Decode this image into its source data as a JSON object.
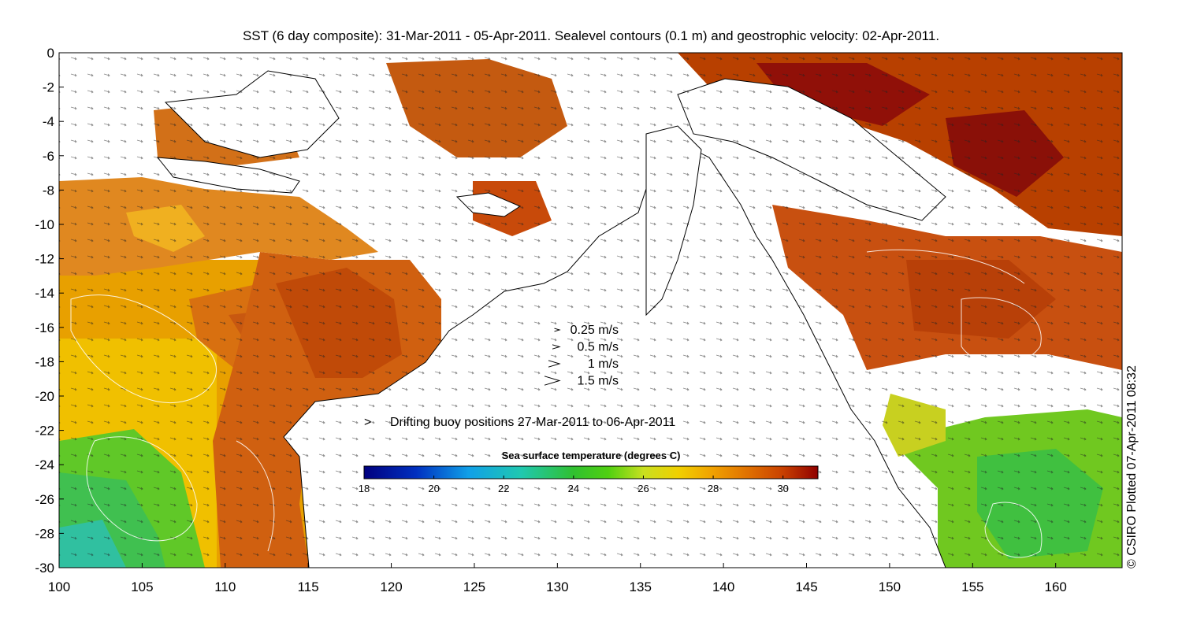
{
  "title": "SST (6 day composite): 31-Mar-2011 - 05-Apr-2011. Sealevel contours (0.1 m) and geostrophic velocity: 02-Apr-2011.",
  "axes": {
    "x_ticks": [
      100,
      105,
      110,
      115,
      120,
      125,
      130,
      135,
      140,
      145,
      150,
      155,
      160
    ],
    "y_ticks": [
      0,
      -2,
      -4,
      -6,
      -8,
      -10,
      -12,
      -14,
      -16,
      -18,
      -20,
      -22,
      -24,
      -26,
      -28,
      -30
    ],
    "x_range": [
      100,
      164
    ],
    "y_range": [
      -30,
      0
    ]
  },
  "velocity_legend": [
    {
      "label": "0.25 m/s",
      "speed": 0.25
    },
    {
      "label": "0.5 m/s",
      "speed": 0.5
    },
    {
      "label": "1 m/s",
      "speed": 1
    },
    {
      "label": "1.5 m/s",
      "speed": 1.5
    }
  ],
  "buoy_legend": {
    "label": "Drifting buoy positions 27-Mar-2011 to 06-Apr-2011",
    "color": "#d040d0"
  },
  "colorbar": {
    "title": "Sea surface temperature (degrees C)",
    "min": 18,
    "max": 31,
    "ticks": [
      18,
      20,
      22,
      24,
      26,
      28,
      30
    ],
    "stops": [
      {
        "t": 18,
        "color": "#00007f"
      },
      {
        "t": 19.5,
        "color": "#0030c0"
      },
      {
        "t": 21,
        "color": "#10a0e8"
      },
      {
        "t": 22.5,
        "color": "#20c8b0"
      },
      {
        "t": 24,
        "color": "#30c030"
      },
      {
        "t": 25,
        "color": "#50d010"
      },
      {
        "t": 26,
        "color": "#c8e020"
      },
      {
        "t": 27,
        "color": "#f0d000"
      },
      {
        "t": 28,
        "color": "#f0a000"
      },
      {
        "t": 29,
        "color": "#e07000"
      },
      {
        "t": 30,
        "color": "#c84000"
      },
      {
        "t": 31,
        "color": "#900000"
      }
    ]
  },
  "credit": "© CSIRO Plotted 07-Apr-2011 08:32"
}
